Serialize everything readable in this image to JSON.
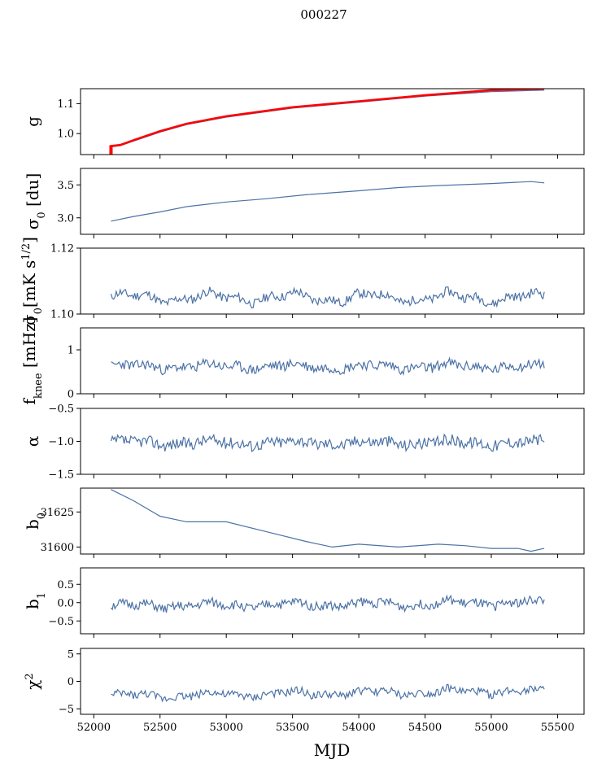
{
  "title": "000227",
  "xlabel": "MJD",
  "x_ticks": [
    52000,
    52500,
    53000,
    53500,
    54000,
    54500,
    55000,
    55500
  ],
  "colors": {
    "series": "#4c72a6",
    "highlight": "#ff0000",
    "axis": "#000000"
  },
  "chart_data": [
    {
      "type": "line",
      "panel": "g",
      "ylabel": "g",
      "xlim": [
        51900,
        55700
      ],
      "ylim": [
        0.93,
        1.15
      ],
      "yticks": [
        1.0,
        1.1
      ],
      "ytick_labels": [
        "1.0",
        "1.1"
      ],
      "x": [
        52120,
        52200,
        52300,
        52500,
        52700,
        53000,
        53500,
        54000,
        54500,
        55000,
        55400
      ],
      "series": [
        {
          "values": [
            0.955,
            0.96,
            0.975,
            1.005,
            1.03,
            1.055,
            1.085,
            1.105,
            1.125,
            1.14,
            1.145
          ]
        },
        {
          "highlight": true,
          "values": [
            0.958,
            0.962,
            0.978,
            1.008,
            1.033,
            1.058,
            1.088,
            1.108,
            1.128,
            1.145,
            1.15
          ]
        }
      ]
    },
    {
      "type": "line",
      "panel": "sigma0_du",
      "ylabel": "σ₀ [du]",
      "xlim": [
        51900,
        55700
      ],
      "ylim": [
        2.75,
        3.75
      ],
      "yticks": [
        3.0,
        3.5
      ],
      "ytick_labels": [
        "3.0",
        "3.5"
      ],
      "x": [
        52130,
        52300,
        52500,
        52700,
        53000,
        53300,
        53600,
        54000,
        54300,
        54600,
        55000,
        55300,
        55400
      ],
      "series": [
        {
          "values": [
            2.95,
            3.02,
            3.09,
            3.17,
            3.24,
            3.29,
            3.35,
            3.41,
            3.46,
            3.49,
            3.52,
            3.55,
            3.53
          ]
        }
      ]
    },
    {
      "type": "line",
      "panel": "sigma0_mK",
      "ylabel": "σ₀[mK s^1/2]",
      "xlim": [
        51900,
        55700
      ],
      "ylim": [
        1.1,
        1.12
      ],
      "yticks": [
        1.1,
        1.12
      ],
      "ytick_labels": [
        "1.10",
        "1.12"
      ],
      "x_start": 52130,
      "x_end": 55400,
      "n_points": 330,
      "series": [
        {
          "mean": 1.105,
          "amplitude": 0.0012,
          "noise": 0.0014,
          "seed": 11
        }
      ]
    },
    {
      "type": "line",
      "panel": "fknee",
      "ylabel": "f_knee [mHz]",
      "xlim": [
        51900,
        55700
      ],
      "ylim": [
        0,
        1.5
      ],
      "yticks": [
        0,
        1
      ],
      "ytick_labels": [
        "0",
        "1"
      ],
      "x_start": 52130,
      "x_end": 55400,
      "n_points": 330,
      "series": [
        {
          "mean": 0.62,
          "amplitude": 0.05,
          "noise": 0.12,
          "seed": 23
        }
      ]
    },
    {
      "type": "line",
      "panel": "alpha",
      "ylabel": "α",
      "xlim": [
        51900,
        55700
      ],
      "ylim": [
        -1.5,
        -0.5
      ],
      "yticks": [
        -1.5,
        -1.0,
        -0.5
      ],
      "ytick_labels": [
        "−1.5",
        "−1.0",
        "−0.5"
      ],
      "x_start": 52130,
      "x_end": 55400,
      "n_points": 330,
      "series": [
        {
          "mean": -1.02,
          "amplitude": 0.03,
          "noise": 0.09,
          "seed": 37
        }
      ]
    },
    {
      "type": "line",
      "panel": "b0",
      "ylabel": "b₀",
      "xlim": [
        51900,
        55700
      ],
      "ylim": [
        31595,
        31642
      ],
      "yticks": [
        31600,
        31625
      ],
      "ytick_labels": [
        "31600",
        "31625"
      ],
      "x": [
        52130,
        52300,
        52500,
        52700,
        53000,
        53300,
        53600,
        53800,
        54000,
        54300,
        54600,
        54800,
        55000,
        55200,
        55300,
        55400
      ],
      "series": [
        {
          "values": [
            31641,
            31633,
            31622,
            31618,
            31618,
            31611,
            31604,
            31600,
            31602,
            31600,
            31602,
            31601,
            31599,
            31599,
            31597,
            31599
          ]
        }
      ]
    },
    {
      "type": "line",
      "panel": "b1",
      "ylabel": "b₁",
      "xlim": [
        51900,
        55700
      ],
      "ylim": [
        -0.85,
        0.95
      ],
      "yticks": [
        -0.5,
        0.0,
        0.5
      ],
      "ytick_labels": [
        "−0.5",
        "0.0",
        "0.5"
      ],
      "x_start": 52130,
      "x_end": 55400,
      "n_points": 330,
      "series": [
        {
          "mean": -0.05,
          "amplitude": 0.06,
          "noise": 0.13,
          "seed": 51,
          "trend": 0.1
        }
      ]
    },
    {
      "type": "line",
      "panel": "chi2",
      "ylabel": "χ²",
      "xlim": [
        51900,
        55700
      ],
      "ylim": [
        -6,
        6
      ],
      "yticks": [
        -5,
        0,
        5
      ],
      "ytick_labels": [
        "−5",
        "0",
        "5"
      ],
      "x_start": 52130,
      "x_end": 55400,
      "n_points": 330,
      "series": [
        {
          "mean": -2.2,
          "amplitude": 0.4,
          "noise": 0.75,
          "seed": 73,
          "trend": 1.0
        }
      ]
    }
  ]
}
